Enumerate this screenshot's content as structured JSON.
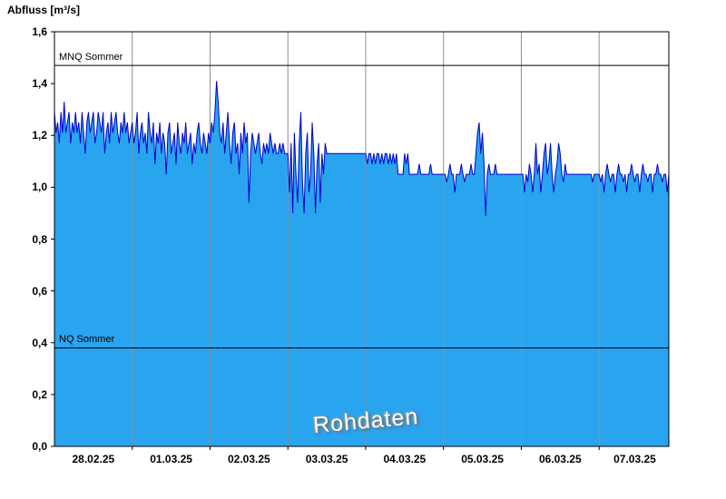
{
  "title": "Abfluss [m³/s]",
  "watermark": "Rohdaten",
  "chart_data": {
    "type": "area",
    "title": "Abfluss [m³/s]",
    "ylabel": "Abfluss [m³/s]",
    "xlabel": "",
    "ylim": [
      0.0,
      1.6
    ],
    "ytick_step": 0.2,
    "yticks": [
      {
        "v": 0.0,
        "label": "0,0"
      },
      {
        "v": 0.2,
        "label": "0,2"
      },
      {
        "v": 0.4,
        "label": "0,4"
      },
      {
        "v": 0.6,
        "label": "0,6"
      },
      {
        "v": 0.8,
        "label": "0,8"
      },
      {
        "v": 1.0,
        "label": "1,0"
      },
      {
        "v": 1.2,
        "label": "1,2"
      },
      {
        "v": 1.4,
        "label": "1,4"
      },
      {
        "v": 1.6,
        "label": "1,6"
      }
    ],
    "categories": [
      "28.02.25",
      "01.03.25",
      "02.03.25",
      "03.03.25",
      "04.03.25",
      "05.03.25",
      "06.03.25",
      "07.03.25"
    ],
    "points_per_day": 48,
    "grid": "vertical-day-boundaries",
    "legend": "none",
    "reference_lines": [
      {
        "label": "MNQ Sommer",
        "value": 1.47
      },
      {
        "label": "NQ Sommer",
        "value": 0.38
      }
    ],
    "colors": {
      "fill": "#29a4ef",
      "line": "#0000cc",
      "grid": "#8f8f8f",
      "reference": "#000000",
      "axis": "#000000"
    },
    "values": [
      1.29,
      1.21,
      1.25,
      1.17,
      1.29,
      1.21,
      1.33,
      1.21,
      1.25,
      1.29,
      1.17,
      1.25,
      1.21,
      1.29,
      1.21,
      1.25,
      1.17,
      1.29,
      1.21,
      1.13,
      1.25,
      1.29,
      1.21,
      1.25,
      1.29,
      1.17,
      1.21,
      1.29,
      1.25,
      1.21,
      1.29,
      1.13,
      1.21,
      1.25,
      1.17,
      1.29,
      1.21,
      1.25,
      1.29,
      1.21,
      1.17,
      1.25,
      1.21,
      1.29,
      1.21,
      1.25,
      1.17,
      1.21,
      1.25,
      1.17,
      1.21,
      1.29,
      1.13,
      1.21,
      1.25,
      1.17,
      1.21,
      1.13,
      1.29,
      1.21,
      1.17,
      1.25,
      1.09,
      1.21,
      1.17,
      1.25,
      1.13,
      1.21,
      1.17,
      1.05,
      1.21,
      1.25,
      1.13,
      1.17,
      1.21,
      1.09,
      1.25,
      1.17,
      1.13,
      1.21,
      1.17,
      1.25,
      1.13,
      1.17,
      1.21,
      1.09,
      1.17,
      1.13,
      1.21,
      1.25,
      1.17,
      1.13,
      1.21,
      1.17,
      1.13,
      1.21,
      1.17,
      1.25,
      1.21,
      1.29,
      1.41,
      1.33,
      1.21,
      1.17,
      1.25,
      1.13,
      1.21,
      1.29,
      1.17,
      1.09,
      1.21,
      1.25,
      1.13,
      1.17,
      1.05,
      1.21,
      1.13,
      1.25,
      1.17,
      1.21,
      0.94,
      1.13,
      1.21,
      1.17,
      1.13,
      1.17,
      1.21,
      1.13,
      1.09,
      1.17,
      1.13,
      1.17,
      1.13,
      1.21,
      1.17,
      1.13,
      1.17,
      1.13,
      1.13,
      1.17,
      1.13,
      1.17,
      1.13,
      1.13,
      1.13,
      0.98,
      1.17,
      0.9,
      1.21,
      1.05,
      0.94,
      1.17,
      1.29,
      1.02,
      0.9,
      1.13,
      1.21,
      0.98,
      1.05,
      1.25,
      1.13,
      0.9,
      1.09,
      1.17,
      0.94,
      1.13,
      1.05,
      1.17,
      1.13,
      1.13,
      1.13,
      1.13,
      1.13,
      1.13,
      1.13,
      1.13,
      1.13,
      1.13,
      1.13,
      1.13,
      1.13,
      1.13,
      1.13,
      1.13,
      1.13,
      1.13,
      1.13,
      1.13,
      1.13,
      1.13,
      1.13,
      1.13,
      1.13,
      1.09,
      1.13,
      1.13,
      1.09,
      1.13,
      1.09,
      1.13,
      1.13,
      1.09,
      1.13,
      1.09,
      1.13,
      1.13,
      1.09,
      1.13,
      1.09,
      1.13,
      1.09,
      1.13,
      1.05,
      1.05,
      1.05,
      1.05,
      1.13,
      1.09,
      1.13,
      1.05,
      1.05,
      1.05,
      1.05,
      1.05,
      1.05,
      1.09,
      1.05,
      1.05,
      1.05,
      1.05,
      1.05,
      1.05,
      1.09,
      1.05,
      1.05,
      1.05,
      1.05,
      1.05,
      1.05,
      1.05,
      1.05,
      1.05,
      1.02,
      1.05,
      1.09,
      1.05,
      1.05,
      0.98,
      1.05,
      1.05,
      1.05,
      1.09,
      1.05,
      1.02,
      1.05,
      1.05,
      1.05,
      1.09,
      1.05,
      1.05,
      1.13,
      1.21,
      1.25,
      1.13,
      1.21,
      1.09,
      0.89,
      1.05,
      1.09,
      1.05,
      1.05,
      1.05,
      1.09,
      1.05,
      1.05,
      1.05,
      1.05,
      1.05,
      1.05,
      1.05,
      1.05,
      1.05,
      1.05,
      1.05,
      1.05,
      1.05,
      1.05,
      1.05,
      1.05,
      1.05,
      0.98,
      1.05,
      1.02,
      1.09,
      1.05,
      0.98,
      1.05,
      1.17,
      1.05,
      1.09,
      0.98,
      1.05,
      1.13,
      1.17,
      1.05,
      1.09,
      1.17,
      1.05,
      0.98,
      1.05,
      1.09,
      1.17,
      1.13,
      1.05,
      1.02,
      1.09,
      1.05,
      1.05,
      1.05,
      1.05,
      1.05,
      1.05,
      1.05,
      1.05,
      1.05,
      1.05,
      1.05,
      1.05,
      1.05,
      1.05,
      1.05,
      1.05,
      1.02,
      1.05,
      1.05,
      1.05,
      1.05,
      1.02,
      1.05,
      0.98,
      1.05,
      1.09,
      1.05,
      1.02,
      1.05,
      1.05,
      0.98,
      1.05,
      1.09,
      1.05,
      1.05,
      1.02,
      1.05,
      0.98,
      1.05,
      1.05,
      1.09,
      1.05,
      1.02,
      1.05,
      1.05,
      0.98,
      1.05,
      1.09,
      1.05,
      1.05,
      1.02,
      1.05,
      1.05,
      0.98,
      1.05,
      1.05,
      1.09,
      1.05,
      1.05,
      1.02,
      1.05,
      1.05,
      0.98,
      1.05
    ]
  }
}
